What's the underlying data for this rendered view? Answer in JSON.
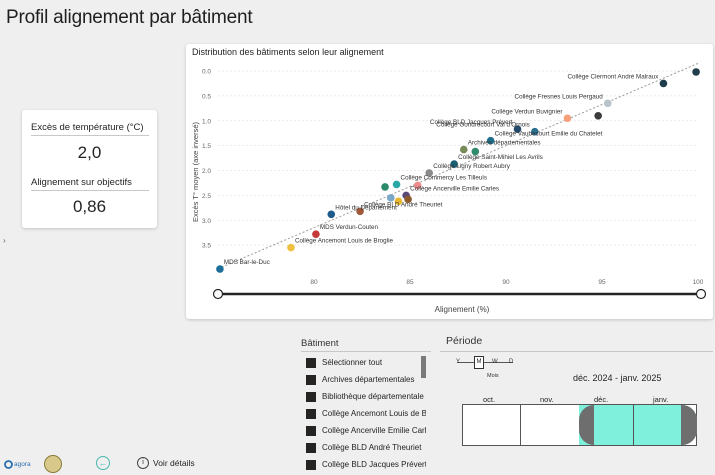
{
  "page": {
    "title": "Profil alignement par bâtiment"
  },
  "kpi": {
    "temp_label": "Excès de température (°C)",
    "temp_value": "2,0",
    "align_label": "Alignement sur objectifs",
    "align_value": "0,86"
  },
  "chart_data": {
    "type": "scatter",
    "title": "Distribution des bâtiments selon leur alignement",
    "xlabel": "Alignement (%)",
    "ylabel": "Excès T° moyen (axe inversé)",
    "xlim": [
      75,
      100
    ],
    "ylim": [
      0,
      4.0
    ],
    "y_inverted": true,
    "x_ticks": [
      "80",
      "85",
      "90",
      "95",
      "100"
    ],
    "y_ticks": [
      "0.0",
      "0.5",
      "1.0",
      "1.5",
      "2.0",
      "2.5",
      "3.0",
      "3.5"
    ],
    "trendline": "dashed",
    "points": [
      {
        "label": "Collège Clermont André Malraux",
        "x": 98.2,
        "y": 0.25,
        "color": "#1f3d4a"
      },
      {
        "label": "",
        "x": 99.9,
        "y": 0.02,
        "color": "#1f3d4a"
      },
      {
        "label": "Collège Fresnes Louis Pergaud",
        "x": 95.3,
        "y": 0.65,
        "color": "#b8c4cc"
      },
      {
        "label": "Collège Verdun Buvignier",
        "x": 93.2,
        "y": 0.95,
        "color": "#f6a07b"
      },
      {
        "label": "",
        "x": 94.8,
        "y": 0.9,
        "color": "#3c3c3c"
      },
      {
        "label": "Collège BLD Jacques Prévert",
        "x": 90.6,
        "y": 1.17,
        "color": "#244b6b"
      },
      {
        "label": "Collège Gondrecourt Val d'Ornois",
        "x": 91.5,
        "y": 1.22,
        "color": "#2b6f8f"
      },
      {
        "label": "Collège Vaubecourt Emilie du Chatelet",
        "x": 89.2,
        "y": 1.4,
        "color": "#1e6e8a"
      },
      {
        "label": "Archives départementales",
        "x": 87.8,
        "y": 1.58,
        "color": "#7a8b5a"
      },
      {
        "label": "",
        "x": 88.4,
        "y": 1.62,
        "color": "#2e8b6d"
      },
      {
        "label": "Collège Saint-Mihiel Les Avrils",
        "x": 87.3,
        "y": 1.87,
        "color": "#1a5f73"
      },
      {
        "label": "Collège Ligny Robert Aubry",
        "x": 86.0,
        "y": 2.05,
        "color": "#8a8a8a"
      },
      {
        "label": "Collège Commercy Les Tilleuls",
        "x": 84.3,
        "y": 2.28,
        "color": "#2aa8a8"
      },
      {
        "label": "",
        "x": 83.7,
        "y": 2.33,
        "color": "#2a8a6a"
      },
      {
        "label": "",
        "x": 85.4,
        "y": 2.3,
        "color": "#ef8a8a"
      },
      {
        "label": "Collège Ancerville Emilie Carles",
        "x": 84.8,
        "y": 2.5,
        "color": "#5a4a7a"
      },
      {
        "label": "",
        "x": 84.0,
        "y": 2.55,
        "color": "#7aa7c7"
      },
      {
        "label": "",
        "x": 84.4,
        "y": 2.62,
        "color": "#e6b830"
      },
      {
        "label": "",
        "x": 84.9,
        "y": 2.58,
        "color": "#8a5a2a"
      },
      {
        "label": "Collège BLD André Theuriet",
        "x": 82.4,
        "y": 2.82,
        "color": "#a05a3a"
      },
      {
        "label": "Hôtel du Département",
        "x": 80.9,
        "y": 2.88,
        "color": "#1e5a8a"
      },
      {
        "label": "MDS Verdun-Couten",
        "x": 80.1,
        "y": 3.28,
        "color": "#c73a3a"
      },
      {
        "label": "Collège Ancemont Louis de Broglie",
        "x": 78.8,
        "y": 3.55,
        "color": "#f0c040"
      },
      {
        "label": "MDS Bar-le-Duc",
        "x": 75.1,
        "y": 3.98,
        "color": "#1e6e9a"
      }
    ]
  },
  "batiment": {
    "title": "Bâtiment",
    "items": [
      "Sélectionner tout",
      "Archives départementales",
      "Bibliothèque départementale",
      "Collège Ancemont Louis de Br...",
      "Collège Ancerville Emilie Carles",
      "Collège BLD André Theuriet",
      "Collège BLD Jacques Prévert"
    ]
  },
  "periode": {
    "title": "Période",
    "granularity": [
      "Y",
      "M",
      "W",
      "D"
    ],
    "granularity_selected": "M",
    "granularity_label": "Mois",
    "range_text": "déc. 2024 - janv. 2025",
    "months": [
      "oct.",
      "nov.",
      "déc.",
      "janv."
    ],
    "selected_months": [
      "déc.",
      "janv."
    ],
    "selected_color": "#7ff0dc"
  },
  "footer": {
    "logo_text": "agora",
    "voir_details": "Voir détails"
  }
}
